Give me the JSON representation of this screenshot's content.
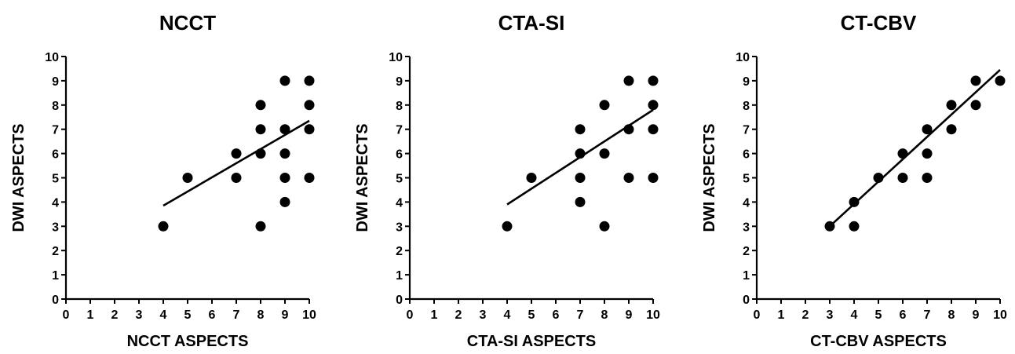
{
  "chart_data": [
    {
      "type": "scatter",
      "title": "NCCT",
      "xlabel": "NCCT ASPECTS",
      "ylabel": "DWI ASPECTS",
      "xlim": [
        0,
        10
      ],
      "ylim": [
        0,
        10
      ],
      "xticks": [
        "0",
        "1",
        "2",
        "3",
        "4",
        "5",
        "6",
        "7",
        "8",
        "9",
        "10"
      ],
      "yticks": [
        "0",
        "1",
        "2",
        "3",
        "4",
        "5",
        "6",
        "7",
        "8",
        "9",
        "10"
      ],
      "grid": false,
      "points": [
        {
          "x": 4,
          "y": 3
        },
        {
          "x": 5,
          "y": 5
        },
        {
          "x": 7,
          "y": 6
        },
        {
          "x": 7,
          "y": 5
        },
        {
          "x": 8,
          "y": 8
        },
        {
          "x": 8,
          "y": 7
        },
        {
          "x": 8,
          "y": 6
        },
        {
          "x": 8,
          "y": 3
        },
        {
          "x": 9,
          "y": 9
        },
        {
          "x": 9,
          "y": 7
        },
        {
          "x": 9,
          "y": 6
        },
        {
          "x": 9,
          "y": 5
        },
        {
          "x": 9,
          "y": 4
        },
        {
          "x": 10,
          "y": 9
        },
        {
          "x": 10,
          "y": 8
        },
        {
          "x": 10,
          "y": 7
        },
        {
          "x": 10,
          "y": 5
        }
      ],
      "fit_line": {
        "x": [
          4,
          10
        ],
        "y": [
          3.85,
          7.35
        ]
      }
    },
    {
      "type": "scatter",
      "title": "CTA-SI",
      "xlabel": "CTA-SI ASPECTS",
      "ylabel": "DWI ASPECTS",
      "xlim": [
        0,
        10
      ],
      "ylim": [
        0,
        10
      ],
      "xticks": [
        "0",
        "1",
        "2",
        "3",
        "4",
        "5",
        "6",
        "7",
        "8",
        "9",
        "10"
      ],
      "yticks": [
        "0",
        "1",
        "2",
        "3",
        "4",
        "5",
        "6",
        "7",
        "8",
        "9",
        "10"
      ],
      "grid": false,
      "points": [
        {
          "x": 4,
          "y": 3
        },
        {
          "x": 5,
          "y": 5
        },
        {
          "x": 7,
          "y": 7
        },
        {
          "x": 7,
          "y": 6
        },
        {
          "x": 7,
          "y": 5
        },
        {
          "x": 7,
          "y": 4
        },
        {
          "x": 8,
          "y": 8
        },
        {
          "x": 8,
          "y": 6
        },
        {
          "x": 8,
          "y": 3
        },
        {
          "x": 9,
          "y": 9
        },
        {
          "x": 9,
          "y": 7
        },
        {
          "x": 9,
          "y": 5
        },
        {
          "x": 10,
          "y": 9
        },
        {
          "x": 10,
          "y": 8
        },
        {
          "x": 10,
          "y": 7
        },
        {
          "x": 10,
          "y": 5
        }
      ],
      "fit_line": {
        "x": [
          4,
          10
        ],
        "y": [
          3.9,
          7.8
        ]
      }
    },
    {
      "type": "scatter",
      "title": "CT-CBV",
      "xlabel": "CT-CBV ASPECTS",
      "ylabel": "DWI ASPECTS",
      "xlim": [
        0,
        10
      ],
      "ylim": [
        0,
        10
      ],
      "xticks": [
        "0",
        "1",
        "2",
        "3",
        "4",
        "5",
        "6",
        "7",
        "8",
        "9",
        "10"
      ],
      "yticks": [
        "0",
        "1",
        "2",
        "3",
        "4",
        "5",
        "6",
        "7",
        "8",
        "9",
        "10"
      ],
      "grid": false,
      "points": [
        {
          "x": 3,
          "y": 3
        },
        {
          "x": 4,
          "y": 4
        },
        {
          "x": 4,
          "y": 3
        },
        {
          "x": 5,
          "y": 5
        },
        {
          "x": 6,
          "y": 6
        },
        {
          "x": 6,
          "y": 5
        },
        {
          "x": 7,
          "y": 7
        },
        {
          "x": 7,
          "y": 6
        },
        {
          "x": 7,
          "y": 5
        },
        {
          "x": 8,
          "y": 8
        },
        {
          "x": 8,
          "y": 7
        },
        {
          "x": 9,
          "y": 9
        },
        {
          "x": 9,
          "y": 8
        },
        {
          "x": 10,
          "y": 9
        }
      ],
      "fit_line": {
        "x": [
          3,
          10
        ],
        "y": [
          3.0,
          9.45
        ]
      }
    }
  ]
}
